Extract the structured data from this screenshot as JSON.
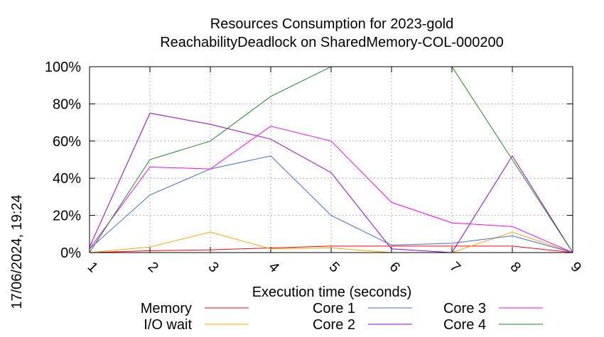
{
  "chart_data": {
    "type": "line",
    "title": "Resources Consumption for 2023-gold",
    "subtitle": "ReachabilityDeadlock on SharedMemory-COL-000200",
    "xlabel": "Execution time (seconds)",
    "ylabel": "",
    "side_label": "17/06/2024, 19:24",
    "xlim": [
      1,
      9
    ],
    "ylim": [
      0,
      100
    ],
    "x_ticks": [
      1,
      2,
      3,
      4,
      5,
      6,
      7,
      8,
      9
    ],
    "y_ticks": [
      0,
      20,
      40,
      60,
      80,
      100
    ],
    "y_tick_labels": [
      "0%",
      "20%",
      "40%",
      "60%",
      "80%",
      "100%"
    ],
    "grid": true,
    "legend_position": "bottom",
    "x": [
      1,
      2,
      3,
      4,
      5,
      6,
      7,
      8,
      9
    ],
    "series": [
      {
        "name": "Memory",
        "color": "#ff0000",
        "values": [
          0,
          1,
          1.5,
          2.5,
          3.5,
          3.5,
          3.5,
          3.5,
          0
        ]
      },
      {
        "name": "I/O wait",
        "color": "#ffa500",
        "values": [
          0,
          3,
          11,
          2,
          2.5,
          0,
          0,
          11,
          0
        ]
      },
      {
        "name": "Core 1",
        "color": "#4169e1",
        "values": [
          2,
          31,
          45,
          52,
          20,
          4,
          5,
          9,
          0
        ]
      },
      {
        "name": "Core 2",
        "color": "#9400d3",
        "values": [
          3,
          75,
          69,
          61,
          43,
          2,
          0,
          52,
          0
        ]
      },
      {
        "name": "Core 3",
        "color": "#ff00ff",
        "values": [
          2,
          46,
          45,
          68,
          60,
          27,
          16,
          14,
          0
        ]
      },
      {
        "name": "Core 4",
        "color": "#228b22",
        "values": [
          0,
          50,
          60,
          84,
          100,
          100,
          100,
          50,
          0
        ]
      }
    ]
  }
}
